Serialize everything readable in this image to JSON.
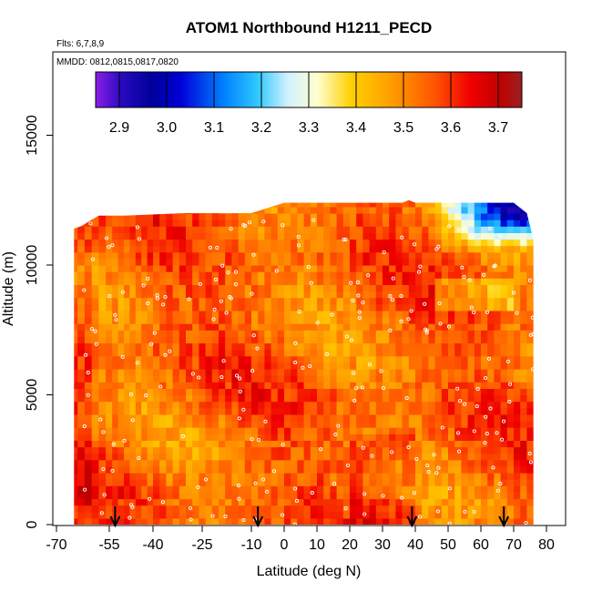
{
  "chart_data": {
    "type": "heatmap",
    "title": "ATOM1 Northbound H1211_PECD",
    "flights_note": "Flts: 6,7,8,9",
    "mmdd_note": "MMDD: 0812,0815,0817,0820",
    "xlabel": "Latitude (deg N)",
    "ylabel": "Altitude (m)",
    "xlim": [
      -70,
      83
    ],
    "ylim": [
      0,
      17500
    ],
    "x_ticks": [
      -70,
      -55,
      -40,
      -25,
      -10,
      0,
      10,
      20,
      30,
      40,
      50,
      60,
      70,
      80
    ],
    "x_tick_labels": [
      "-70",
      "-55",
      "-40",
      "-25",
      "-10",
      "0",
      "10",
      "20",
      "30",
      "40",
      "50",
      "60",
      "70",
      "80"
    ],
    "y_ticks": [
      0,
      5000,
      10000,
      15000
    ],
    "y_tick_labels": [
      "0",
      "5000",
      "10000",
      "15000"
    ],
    "colorbar": {
      "range": [
        2.85,
        3.75
      ],
      "ticks": [
        2.9,
        3.0,
        3.1,
        3.2,
        3.3,
        3.4,
        3.5,
        3.6,
        3.7
      ],
      "tick_labels": [
        "2.9",
        "3.0",
        "3.1",
        "3.2",
        "3.3",
        "3.4",
        "3.5",
        "3.6",
        "3.7"
      ],
      "colors": [
        "#8b1ee6",
        "#0a0aa0",
        "#0000d8",
        "#0060f0",
        "#00b0ff",
        "#c0ecff",
        "#ffffe0",
        "#ffd800",
        "#ffa200",
        "#ff7c00",
        "#ff2000",
        "#d40000",
        "#a02020"
      ]
    },
    "flight_markers_lat": [
      -53,
      -8,
      39,
      67
    ],
    "profile_boundary": {
      "lat": [
        -65,
        -63,
        -58,
        -50,
        -30,
        -10,
        0,
        10,
        20,
        30,
        36,
        38,
        40,
        50,
        60,
        70,
        74,
        76
      ],
      "top_alt": [
        11400,
        11500,
        11900,
        11900,
        12000,
        12000,
        12400,
        12400,
        12400,
        12400,
        12400,
        12500,
        12400,
        12400,
        12400,
        12400,
        12000,
        11000
      ]
    },
    "grid": false,
    "legend": "colorbar-top"
  }
}
